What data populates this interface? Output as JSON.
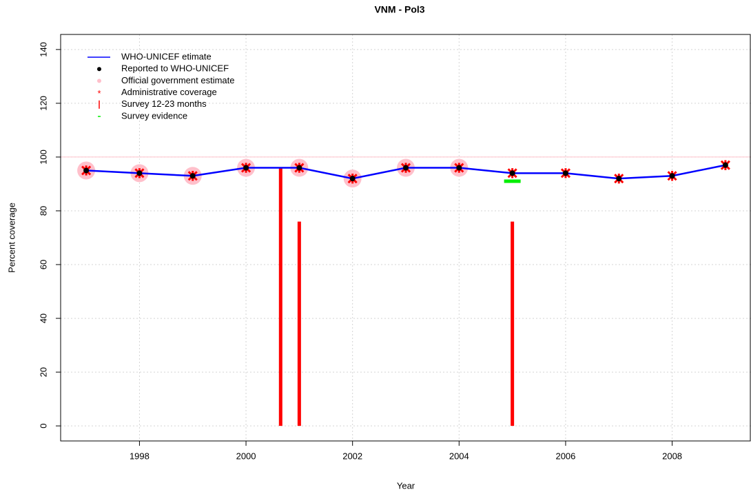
{
  "chart_data": {
    "type": "line",
    "title": "VNM  -  Pol3",
    "xlabel": "Year",
    "ylabel": "Percent coverage",
    "x": [
      1997,
      1998,
      1999,
      2000,
      2001,
      2002,
      2003,
      2004,
      2005,
      2006,
      2007,
      2008,
      2009
    ],
    "series": [
      {
        "name": "WHO-UNICEF etimate",
        "color": "#0000ff",
        "marker": "line",
        "values": [
          95,
          94,
          93,
          96,
          96,
          92,
          96,
          96,
          94,
          94,
          92,
          93,
          97
        ]
      },
      {
        "name": "Reported to WHO-UNICEF",
        "color": "#000000",
        "marker": "dot",
        "values": [
          95,
          94,
          93,
          96,
          96,
          92,
          96,
          96,
          94,
          94,
          92,
          93,
          97
        ]
      },
      {
        "name": "Official government estimate",
        "color": "#ffc0cb",
        "marker": "circle",
        "values": [
          95,
          94,
          93,
          96,
          96,
          92,
          96,
          96,
          null,
          null,
          null,
          null,
          null
        ]
      },
      {
        "name": "Administrative coverage",
        "color": "#ff0000",
        "marker": "star",
        "values": [
          95,
          94,
          93,
          96,
          96,
          92,
          96,
          96,
          94,
          94,
          92,
          93,
          97
        ]
      },
      {
        "name": "Survey 12-23 months",
        "color": "#ff0000",
        "marker": "vbar",
        "x": [
          2000.65,
          2001,
          2005
        ],
        "values": [
          96,
          76,
          76
        ]
      },
      {
        "name": "Survey evidence",
        "color": "#00ee00",
        "marker": "hseg",
        "x": [
          2005
        ],
        "values": [
          91
        ]
      }
    ],
    "reference_line": {
      "value": 100,
      "color": "#ffc0cb"
    },
    "xlim": [
      1996.52,
      2009.48
    ],
    "ylim": [
      -5.6,
      145.6
    ],
    "xticks": [
      1998,
      2000,
      2002,
      2004,
      2006,
      2008
    ],
    "yticks": [
      0,
      20,
      40,
      60,
      80,
      100,
      120,
      140
    ],
    "grid": true,
    "legend": "top-left"
  }
}
